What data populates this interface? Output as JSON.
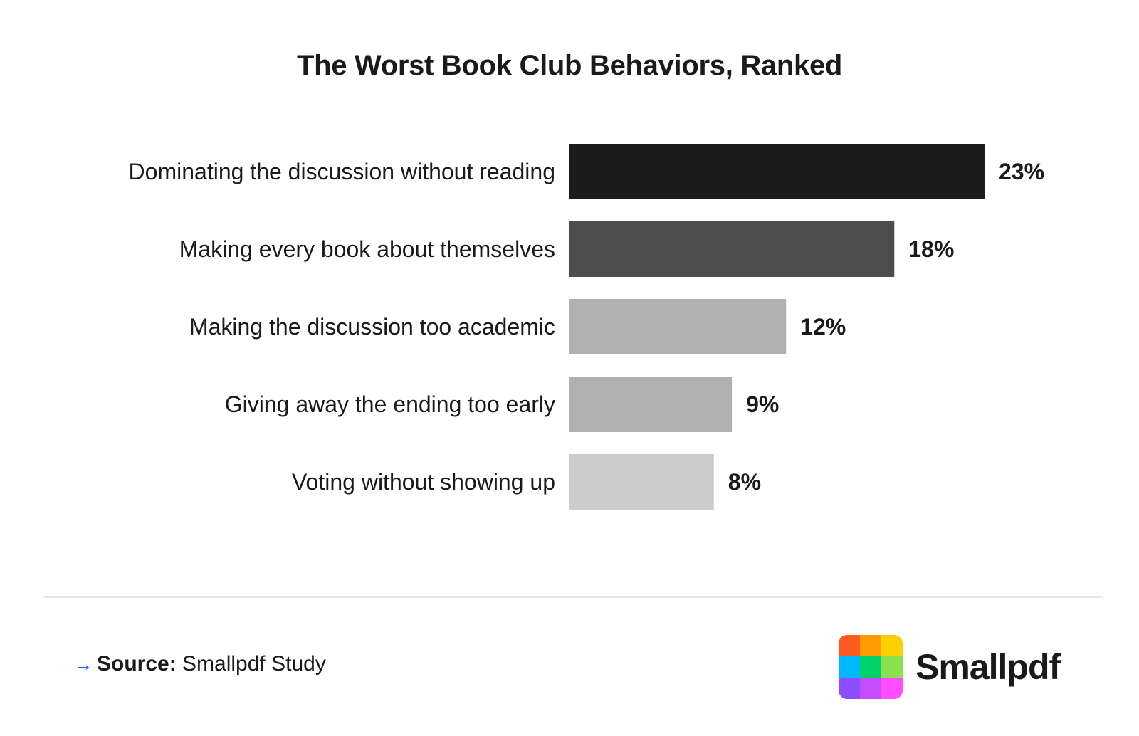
{
  "chart_data": {
    "type": "bar",
    "orientation": "horizontal",
    "title": "The Worst Book Club Behaviors, Ranked",
    "xlabel": "",
    "ylabel": "",
    "categories": [
      "Dominating the discussion without reading",
      "Making every book about themselves",
      "Making the discussion too academic",
      "Giving away the ending too early",
      "Voting without showing up"
    ],
    "values": [
      23,
      18,
      12,
      9,
      8
    ],
    "value_labels": [
      "23%",
      "18%",
      "12%",
      "9%",
      "8%"
    ],
    "bar_colors": [
      "#1c1c1c",
      "#4d4d4d",
      "#b0b0b0",
      "#b0b0b0",
      "#cccccc"
    ],
    "xlim": [
      0,
      23
    ],
    "grid": false,
    "legend": "none"
  },
  "footer": {
    "source_arrow": "→",
    "source_label": "Source:",
    "source_text": "Smallpdf Study"
  },
  "brand": {
    "name": "Smallpdf",
    "logo_icon": "smallpdf-logo-icon",
    "logo_colors": [
      "#ff5a1f",
      "#ff9a00",
      "#ffd000",
      "#00b8ff",
      "#00d26a",
      "#8ce04f",
      "#8a4dff",
      "#c44dff",
      "#ff4dff"
    ]
  }
}
